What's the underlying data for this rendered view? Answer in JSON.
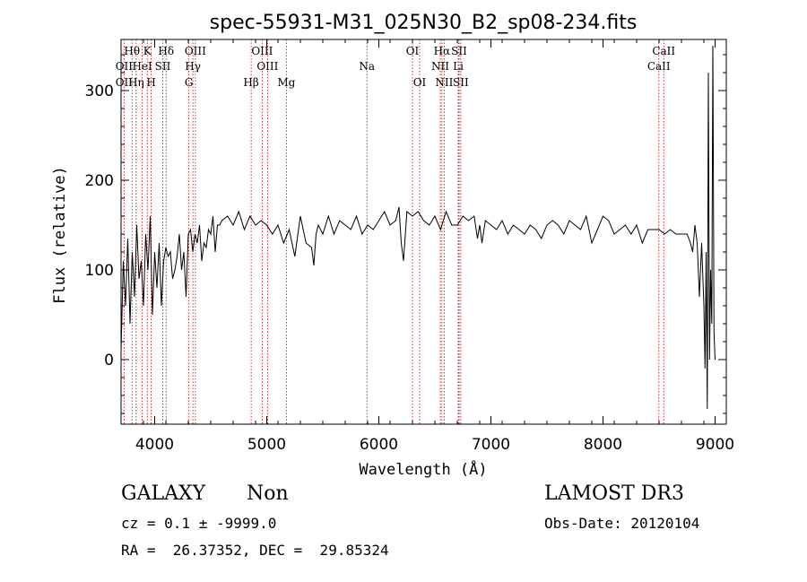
{
  "chart_data": {
    "type": "line",
    "title": "spec-55931-M31_025N30_B2_sp08-234.fits",
    "xlabel": "Wavelength (Å)",
    "ylabel": "Flux (relative)",
    "xlim": [
      3700,
      9100
    ],
    "ylim": [
      -72,
      357
    ],
    "xticks": [
      4000,
      5000,
      6000,
      7000,
      8000,
      9000
    ],
    "xticks_labels": [
      "4000",
      "5000",
      "6000",
      "7000",
      "8000",
      "9000"
    ],
    "yticks": [
      0,
      100,
      200,
      300
    ],
    "yticks_labels": [
      "0",
      "100",
      "200",
      "300"
    ],
    "grid": false,
    "legend": "none",
    "series": [
      {
        "color": "#000000",
        "x": [
          3700,
          3720,
          3740,
          3760,
          3780,
          3800,
          3820,
          3840,
          3860,
          3880,
          3900,
          3920,
          3940,
          3960,
          3980,
          4000,
          4020,
          4040,
          4060,
          4080,
          4100,
          4120,
          4140,
          4160,
          4180,
          4200,
          4220,
          4240,
          4260,
          4280,
          4300,
          4320,
          4340,
          4360,
          4380,
          4400,
          4420,
          4440,
          4460,
          4480,
          4500,
          4520,
          4540,
          4560,
          4580,
          4600,
          4650,
          4700,
          4750,
          4800,
          4850,
          4900,
          4950,
          5000,
          5050,
          5100,
          5150,
          5200,
          5250,
          5300,
          5350,
          5400,
          5420,
          5440,
          5460,
          5500,
          5550,
          5600,
          5650,
          5700,
          5750,
          5800,
          5850,
          5900,
          5950,
          6000,
          6050,
          6100,
          6150,
          6180,
          6200,
          6220,
          6250,
          6300,
          6350,
          6400,
          6450,
          6500,
          6550,
          6600,
          6650,
          6700,
          6750,
          6800,
          6850,
          6880,
          6900,
          6920,
          6950,
          7000,
          7050,
          7100,
          7150,
          7200,
          7250,
          7300,
          7350,
          7400,
          7450,
          7500,
          7550,
          7600,
          7650,
          7700,
          7750,
          7800,
          7850,
          7900,
          7950,
          8000,
          8050,
          8100,
          8150,
          8200,
          8250,
          8300,
          8350,
          8400,
          8450,
          8500,
          8550,
          8600,
          8650,
          8700,
          8750,
          8780,
          8800,
          8820,
          8840,
          8860,
          8880,
          8900,
          8910,
          8920,
          8930,
          8940,
          8950,
          8960,
          8970,
          8980,
          8990,
          9000
        ],
        "y": [
          10,
          110,
          60,
          135,
          40,
          120,
          70,
          150,
          90,
          110,
          60,
          140,
          100,
          160,
          50,
          120,
          80,
          130,
          60,
          110,
          125,
          115,
          120,
          90,
          100,
          115,
          140,
          100,
          120,
          70,
          140,
          145,
          120,
          140,
          130,
          150,
          110,
          130,
          125,
          145,
          140,
          160,
          120,
          150,
          150,
          155,
          160,
          150,
          165,
          145,
          160,
          150,
          155,
          150,
          140,
          150,
          130,
          145,
          115,
          160,
          130,
          125,
          105,
          140,
          150,
          140,
          160,
          140,
          155,
          150,
          145,
          160,
          140,
          150,
          145,
          155,
          165,
          150,
          155,
          170,
          130,
          110,
          165,
          160,
          165,
          155,
          150,
          160,
          145,
          165,
          150,
          150,
          160,
          155,
          160,
          135,
          150,
          130,
          155,
          150,
          145,
          155,
          140,
          150,
          145,
          140,
          150,
          145,
          135,
          150,
          155,
          150,
          140,
          155,
          150,
          145,
          160,
          130,
          145,
          160,
          155,
          140,
          145,
          150,
          140,
          150,
          130,
          145,
          145,
          145,
          140,
          145,
          140,
          140,
          140,
          130,
          120,
          150,
          130,
          70,
          130,
          60,
          -10,
          120,
          -55,
          320,
          0,
          100,
          40,
          350,
          30,
          0
        ]
      }
    ],
    "spectral_lines": [
      {
        "label": "OII",
        "w": 3727,
        "row": 2
      },
      {
        "label": "OII",
        "w": 3727,
        "row": 3
      },
      {
        "label": "Hθ",
        "w": 3798,
        "row": 1
      },
      {
        "label": "HeI",
        "w": 3889,
        "row": 2
      },
      {
        "label": "Hη",
        "w": 3835,
        "row": 3
      },
      {
        "label": "K",
        "w": 3934,
        "row": 1
      },
      {
        "label": "SII",
        "w": 4072,
        "row": 2
      },
      {
        "label": "H",
        "w": 3969,
        "row": 3
      },
      {
        "label": "Hδ",
        "w": 4102,
        "row": 1
      },
      {
        "label": "OIII",
        "w": 4363,
        "row": 1
      },
      {
        "label": "Hγ",
        "w": 4341,
        "row": 2
      },
      {
        "label": "G",
        "w": 4305,
        "row": 3
      },
      {
        "label": "Hβ",
        "w": 4861,
        "row": 3
      },
      {
        "label": "OIII",
        "w": 4959,
        "row": 1
      },
      {
        "label": "OIII",
        "w": 5007,
        "row": 2
      },
      {
        "label": "Mg",
        "w": 5175,
        "row": 3
      },
      {
        "label": "Na",
        "w": 5894,
        "row": 2
      },
      {
        "label": "OI",
        "w": 6300,
        "row": 1
      },
      {
        "label": "OI",
        "w": 6364,
        "row": 3
      },
      {
        "label": "Hα",
        "w": 6563,
        "row": 1
      },
      {
        "label": "SII",
        "w": 6716,
        "row": 1
      },
      {
        "label": "NII",
        "w": 6548,
        "row": 2
      },
      {
        "label": "Li",
        "w": 6708,
        "row": 2
      },
      {
        "label": "NII",
        "w": 6583,
        "row": 3
      },
      {
        "label": "SII",
        "w": 6731,
        "row": 3
      },
      {
        "label": "CaII",
        "w": 8542,
        "row": 1
      },
      {
        "label": "CaII",
        "w": 8498,
        "row": 2
      }
    ]
  },
  "info": {
    "class_label": "GALAXY",
    "subclass_label": "Non",
    "survey_label": "LAMOST DR3",
    "cz_text": "cz = 0.1 ± -9999.0",
    "obsdate_text": "Obs-Date: 20120104",
    "radec_text": "RA =  26.37352, DEC =  29.85324"
  }
}
